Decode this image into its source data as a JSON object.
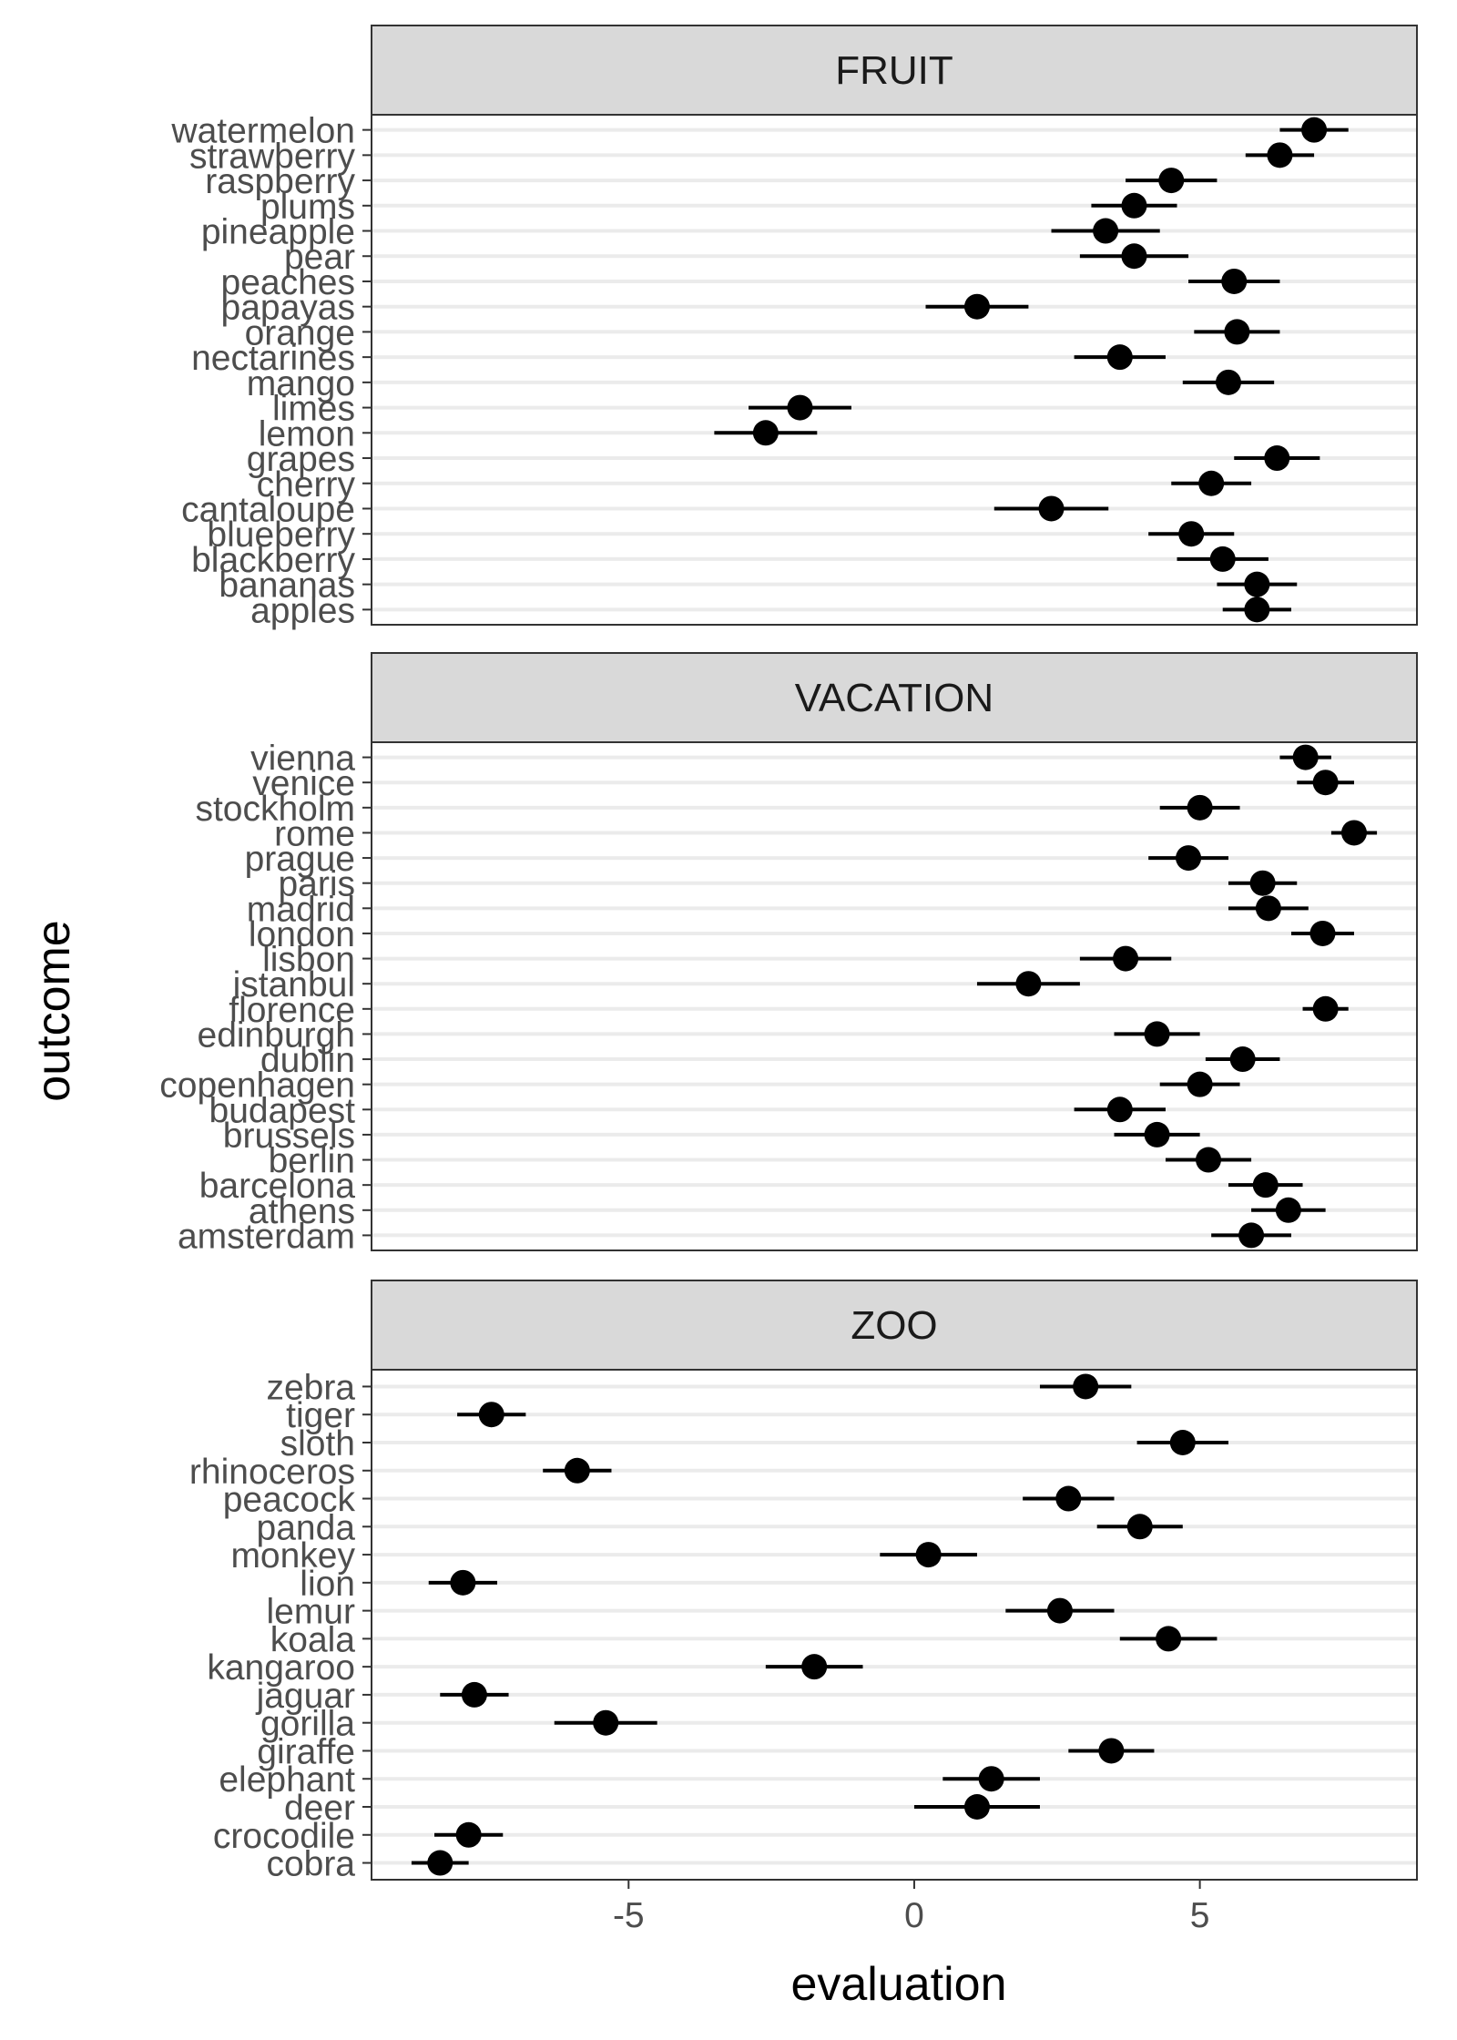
{
  "chart_data": {
    "type": "scatter",
    "subtype": "dot-and-errorbar, faceted",
    "xlabel": "evaluation",
    "ylabel": "outcome",
    "xlim": [
      -9.5,
      8.8
    ],
    "x_ticks": [
      -5,
      0,
      5
    ],
    "x_tick_labels": [
      "-5",
      "0",
      "5"
    ],
    "grid": "horizontal major lines only",
    "theme": "bw",
    "colors": {
      "point": "#000000",
      "grid": "#ebebeb",
      "strip": "#d9d9d9",
      "border": "#333333"
    },
    "facets": [
      {
        "name": "FRUIT",
        "items": [
          {
            "label": "watermelon",
            "value": 7.0,
            "low": 6.4,
            "high": 7.6
          },
          {
            "label": "strawberry",
            "value": 6.4,
            "low": 5.8,
            "high": 7.0
          },
          {
            "label": "raspberry",
            "value": 4.5,
            "low": 3.7,
            "high": 5.3
          },
          {
            "label": "plums",
            "value": 3.85,
            "low": 3.1,
            "high": 4.6
          },
          {
            "label": "pineapple",
            "value": 3.35,
            "low": 2.4,
            "high": 4.3
          },
          {
            "label": "pear",
            "value": 3.85,
            "low": 2.9,
            "high": 4.8
          },
          {
            "label": "peaches",
            "value": 5.6,
            "low": 4.8,
            "high": 6.4
          },
          {
            "label": "papayas",
            "value": 1.1,
            "low": 0.2,
            "high": 2.0
          },
          {
            "label": "orange",
            "value": 5.65,
            "low": 4.9,
            "high": 6.4
          },
          {
            "label": "nectarines",
            "value": 3.6,
            "low": 2.8,
            "high": 4.4
          },
          {
            "label": "mango",
            "value": 5.5,
            "low": 4.7,
            "high": 6.3
          },
          {
            "label": "limes",
            "value": -2.0,
            "low": -2.9,
            "high": -1.1
          },
          {
            "label": "lemon",
            "value": -2.6,
            "low": -3.5,
            "high": -1.7
          },
          {
            "label": "grapes",
            "value": 6.35,
            "low": 5.6,
            "high": 7.1
          },
          {
            "label": "cherry",
            "value": 5.2,
            "low": 4.5,
            "high": 5.9
          },
          {
            "label": "cantaloupe",
            "value": 2.4,
            "low": 1.4,
            "high": 3.4
          },
          {
            "label": "blueberry",
            "value": 4.85,
            "low": 4.1,
            "high": 5.6
          },
          {
            "label": "blackberry",
            "value": 5.4,
            "low": 4.6,
            "high": 6.2
          },
          {
            "label": "bananas",
            "value": 6.0,
            "low": 5.3,
            "high": 6.7
          },
          {
            "label": "apples",
            "value": 6.0,
            "low": 5.4,
            "high": 6.6
          }
        ]
      },
      {
        "name": "VACATION",
        "items": [
          {
            "label": "vienna",
            "value": 6.85,
            "low": 6.4,
            "high": 7.3
          },
          {
            "label": "venice",
            "value": 7.2,
            "low": 6.7,
            "high": 7.7
          },
          {
            "label": "stockholm",
            "value": 5.0,
            "low": 4.3,
            "high": 5.7
          },
          {
            "label": "rome",
            "value": 7.7,
            "low": 7.3,
            "high": 8.1
          },
          {
            "label": "prague",
            "value": 4.8,
            "low": 4.1,
            "high": 5.5
          },
          {
            "label": "paris",
            "value": 6.1,
            "low": 5.5,
            "high": 6.7
          },
          {
            "label": "madrid",
            "value": 6.2,
            "low": 5.5,
            "high": 6.9
          },
          {
            "label": "london",
            "value": 7.15,
            "low": 6.6,
            "high": 7.7
          },
          {
            "label": "lisbon",
            "value": 3.7,
            "low": 2.9,
            "high": 4.5
          },
          {
            "label": "istanbul",
            "value": 2.0,
            "low": 1.1,
            "high": 2.9
          },
          {
            "label": "florence",
            "value": 7.2,
            "low": 6.8,
            "high": 7.6
          },
          {
            "label": "edinburgh",
            "value": 4.25,
            "low": 3.5,
            "high": 5.0
          },
          {
            "label": "dublin",
            "value": 5.75,
            "low": 5.1,
            "high": 6.4
          },
          {
            "label": "copenhagen",
            "value": 5.0,
            "low": 4.3,
            "high": 5.7
          },
          {
            "label": "budapest",
            "value": 3.6,
            "low": 2.8,
            "high": 4.4
          },
          {
            "label": "brussels",
            "value": 4.25,
            "low": 3.5,
            "high": 5.0
          },
          {
            "label": "berlin",
            "value": 5.15,
            "low": 4.4,
            "high": 5.9
          },
          {
            "label": "barcelona",
            "value": 6.15,
            "low": 5.5,
            "high": 6.8
          },
          {
            "label": "athens",
            "value": 6.55,
            "low": 5.9,
            "high": 7.2
          },
          {
            "label": "amsterdam",
            "value": 5.9,
            "low": 5.2,
            "high": 6.6
          }
        ]
      },
      {
        "name": "ZOO",
        "items": [
          {
            "label": "zebra",
            "value": 3.0,
            "low": 2.2,
            "high": 3.8
          },
          {
            "label": "tiger",
            "value": -7.4,
            "low": -8.0,
            "high": -6.8
          },
          {
            "label": "sloth",
            "value": 4.7,
            "low": 3.9,
            "high": 5.5
          },
          {
            "label": "rhinoceros",
            "value": -5.9,
            "low": -6.5,
            "high": -5.3
          },
          {
            "label": "peacock",
            "value": 2.7,
            "low": 1.9,
            "high": 3.5
          },
          {
            "label": "panda",
            "value": 3.95,
            "low": 3.2,
            "high": 4.7
          },
          {
            "label": "monkey",
            "value": 0.25,
            "low": -0.6,
            "high": 1.1
          },
          {
            "label": "lion",
            "value": -7.9,
            "low": -8.5,
            "high": -7.3
          },
          {
            "label": "lemur",
            "value": 2.55,
            "low": 1.6,
            "high": 3.5
          },
          {
            "label": "koala",
            "value": 4.45,
            "low": 3.6,
            "high": 5.3
          },
          {
            "label": "kangaroo",
            "value": -1.75,
            "low": -2.6,
            "high": -0.9
          },
          {
            "label": "jaguar",
            "value": -7.7,
            "low": -8.3,
            "high": -7.1
          },
          {
            "label": "gorilla",
            "value": -5.4,
            "low": -6.3,
            "high": -4.5
          },
          {
            "label": "giraffe",
            "value": 3.45,
            "low": 2.7,
            "high": 4.2
          },
          {
            "label": "elephant",
            "value": 1.35,
            "low": 0.5,
            "high": 2.2
          },
          {
            "label": "deer",
            "value": 1.1,
            "low": 0.0,
            "high": 2.2
          },
          {
            "label": "crocodile",
            "value": -7.8,
            "low": -8.4,
            "high": -7.2
          },
          {
            "label": "cobra",
            "value": -8.3,
            "low": -8.8,
            "high": -7.8
          }
        ]
      }
    ]
  }
}
